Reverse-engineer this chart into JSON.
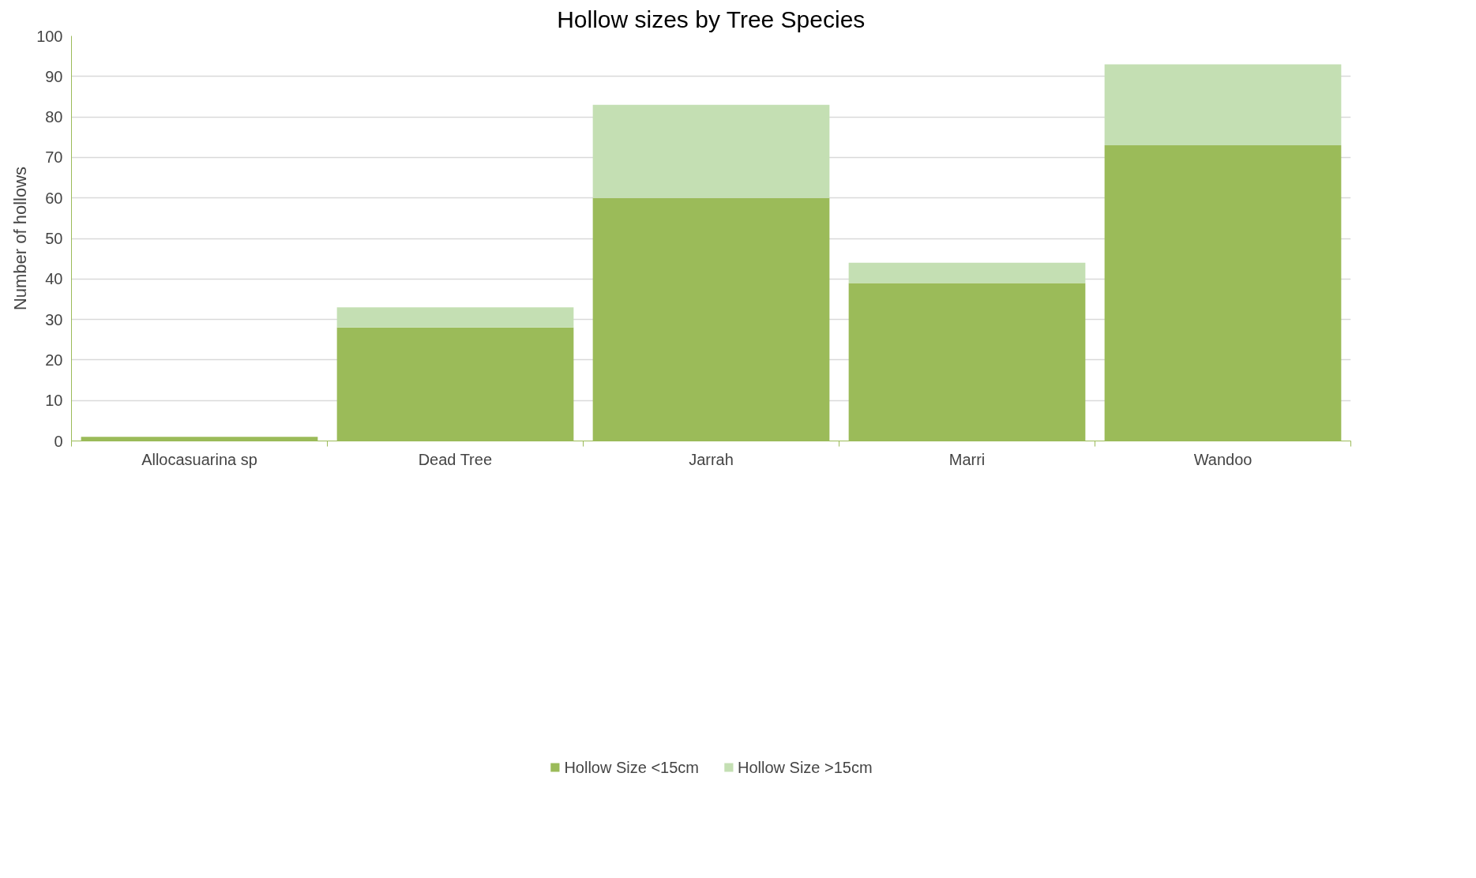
{
  "chart_data": {
    "type": "bar",
    "title": "Hollow sizes by Tree Species",
    "ylabel": "Number of hollows",
    "categories": [
      "Allocasuarina sp",
      "Dead Tree",
      "Jarrah",
      "Marri",
      "Wandoo"
    ],
    "stacked": true,
    "series": [
      {
        "name": "Hollow Size <15cm",
        "color": "#9bbb59",
        "values": [
          1,
          28,
          60,
          39,
          73
        ]
      },
      {
        "name": "Hollow Size >15cm",
        "color": "#c4dfb3",
        "values": [
          0,
          5,
          23,
          5,
          20
        ]
      }
    ],
    "ylim": [
      0,
      100
    ],
    "yticks": [
      0,
      10,
      20,
      30,
      40,
      50,
      60,
      70,
      80,
      90,
      100
    ],
    "grid": "y",
    "legend": "bottom"
  }
}
